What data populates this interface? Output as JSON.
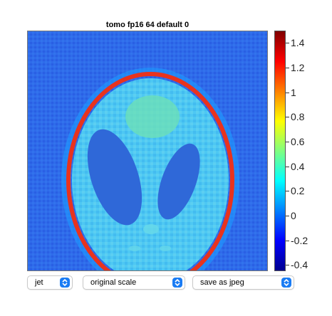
{
  "title": "tomo fp16 64 default 0",
  "colorbar": {
    "colormap": "jet",
    "ticks": [
      "1.4",
      "1.2",
      "1",
      "0.8",
      "0.6",
      "0.4",
      "0.2",
      "0",
      "-0.2",
      "-0.4"
    ],
    "min": -0.45,
    "max": 1.5
  },
  "controls": {
    "colormap_select": {
      "value": "jet",
      "icon": "chevron-updown-icon"
    },
    "scale_select": {
      "value": "original scale",
      "icon": "chevron-updown-icon"
    },
    "save_select": {
      "value": "save as jpeg",
      "icon": "chevron-updown-icon"
    }
  },
  "colors": {
    "accent": "#1a7cf4",
    "background_field": "#2f6bea",
    "head_fill": "#49c5f2",
    "ring": "#e8331e",
    "ventricles": "#2f68d8"
  }
}
